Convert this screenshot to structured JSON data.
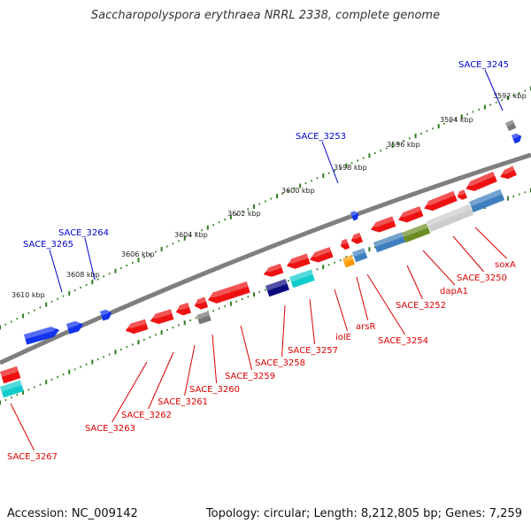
{
  "map": {
    "title": "Saccharopolyspora erythraea NRRL 2338, complete genome",
    "accession": "Accession: NC_009142",
    "topology": "Topology: circular; Length: 8,212,805 bp; Genes: 7,259",
    "colors": {
      "backbone": "#7f7f7f",
      "ticks": "#2e7d1e",
      "forward_label": "#0000cc",
      "reverse_label": "#dd0000",
      "gene_red": "#ee1111",
      "gene_blue": "#1133ee",
      "gene_navy": "#0c0c80",
      "gene_cyan": "#11cccc",
      "gene_gray": "#777777",
      "gene_orange": "#ff9900",
      "gene_steel": "#3f7fbf",
      "gene_olive": "#6b8e23",
      "gene_silver": "#cccccc"
    },
    "kbp_ticks": [
      {
        "label": "3592 kbp"
      },
      {
        "label": "3594 kbp"
      },
      {
        "label": "3596 kbp"
      },
      {
        "label": "3598 kbp"
      },
      {
        "label": "3600 kbp"
      },
      {
        "label": "3602 kbp"
      },
      {
        "label": "3604 kbp"
      },
      {
        "label": "3606 kbp"
      },
      {
        "label": "3608 kbp"
      },
      {
        "label": "3610 kbp"
      }
    ],
    "forward_labels": [
      "SACE_3245",
      "SACE_3253",
      "SACE_3264",
      "SACE_3265"
    ],
    "reverse_labels": [
      "soxA",
      "SACE_3250",
      "dapA1",
      "SACE_3252",
      "SACE_3254",
      "arsR",
      "iolE",
      "SACE_3257",
      "SACE_3258",
      "SACE_3259",
      "SACE_3260",
      "SACE_3261",
      "SACE_3262",
      "SACE_3263",
      "SACE_3267"
    ]
  }
}
